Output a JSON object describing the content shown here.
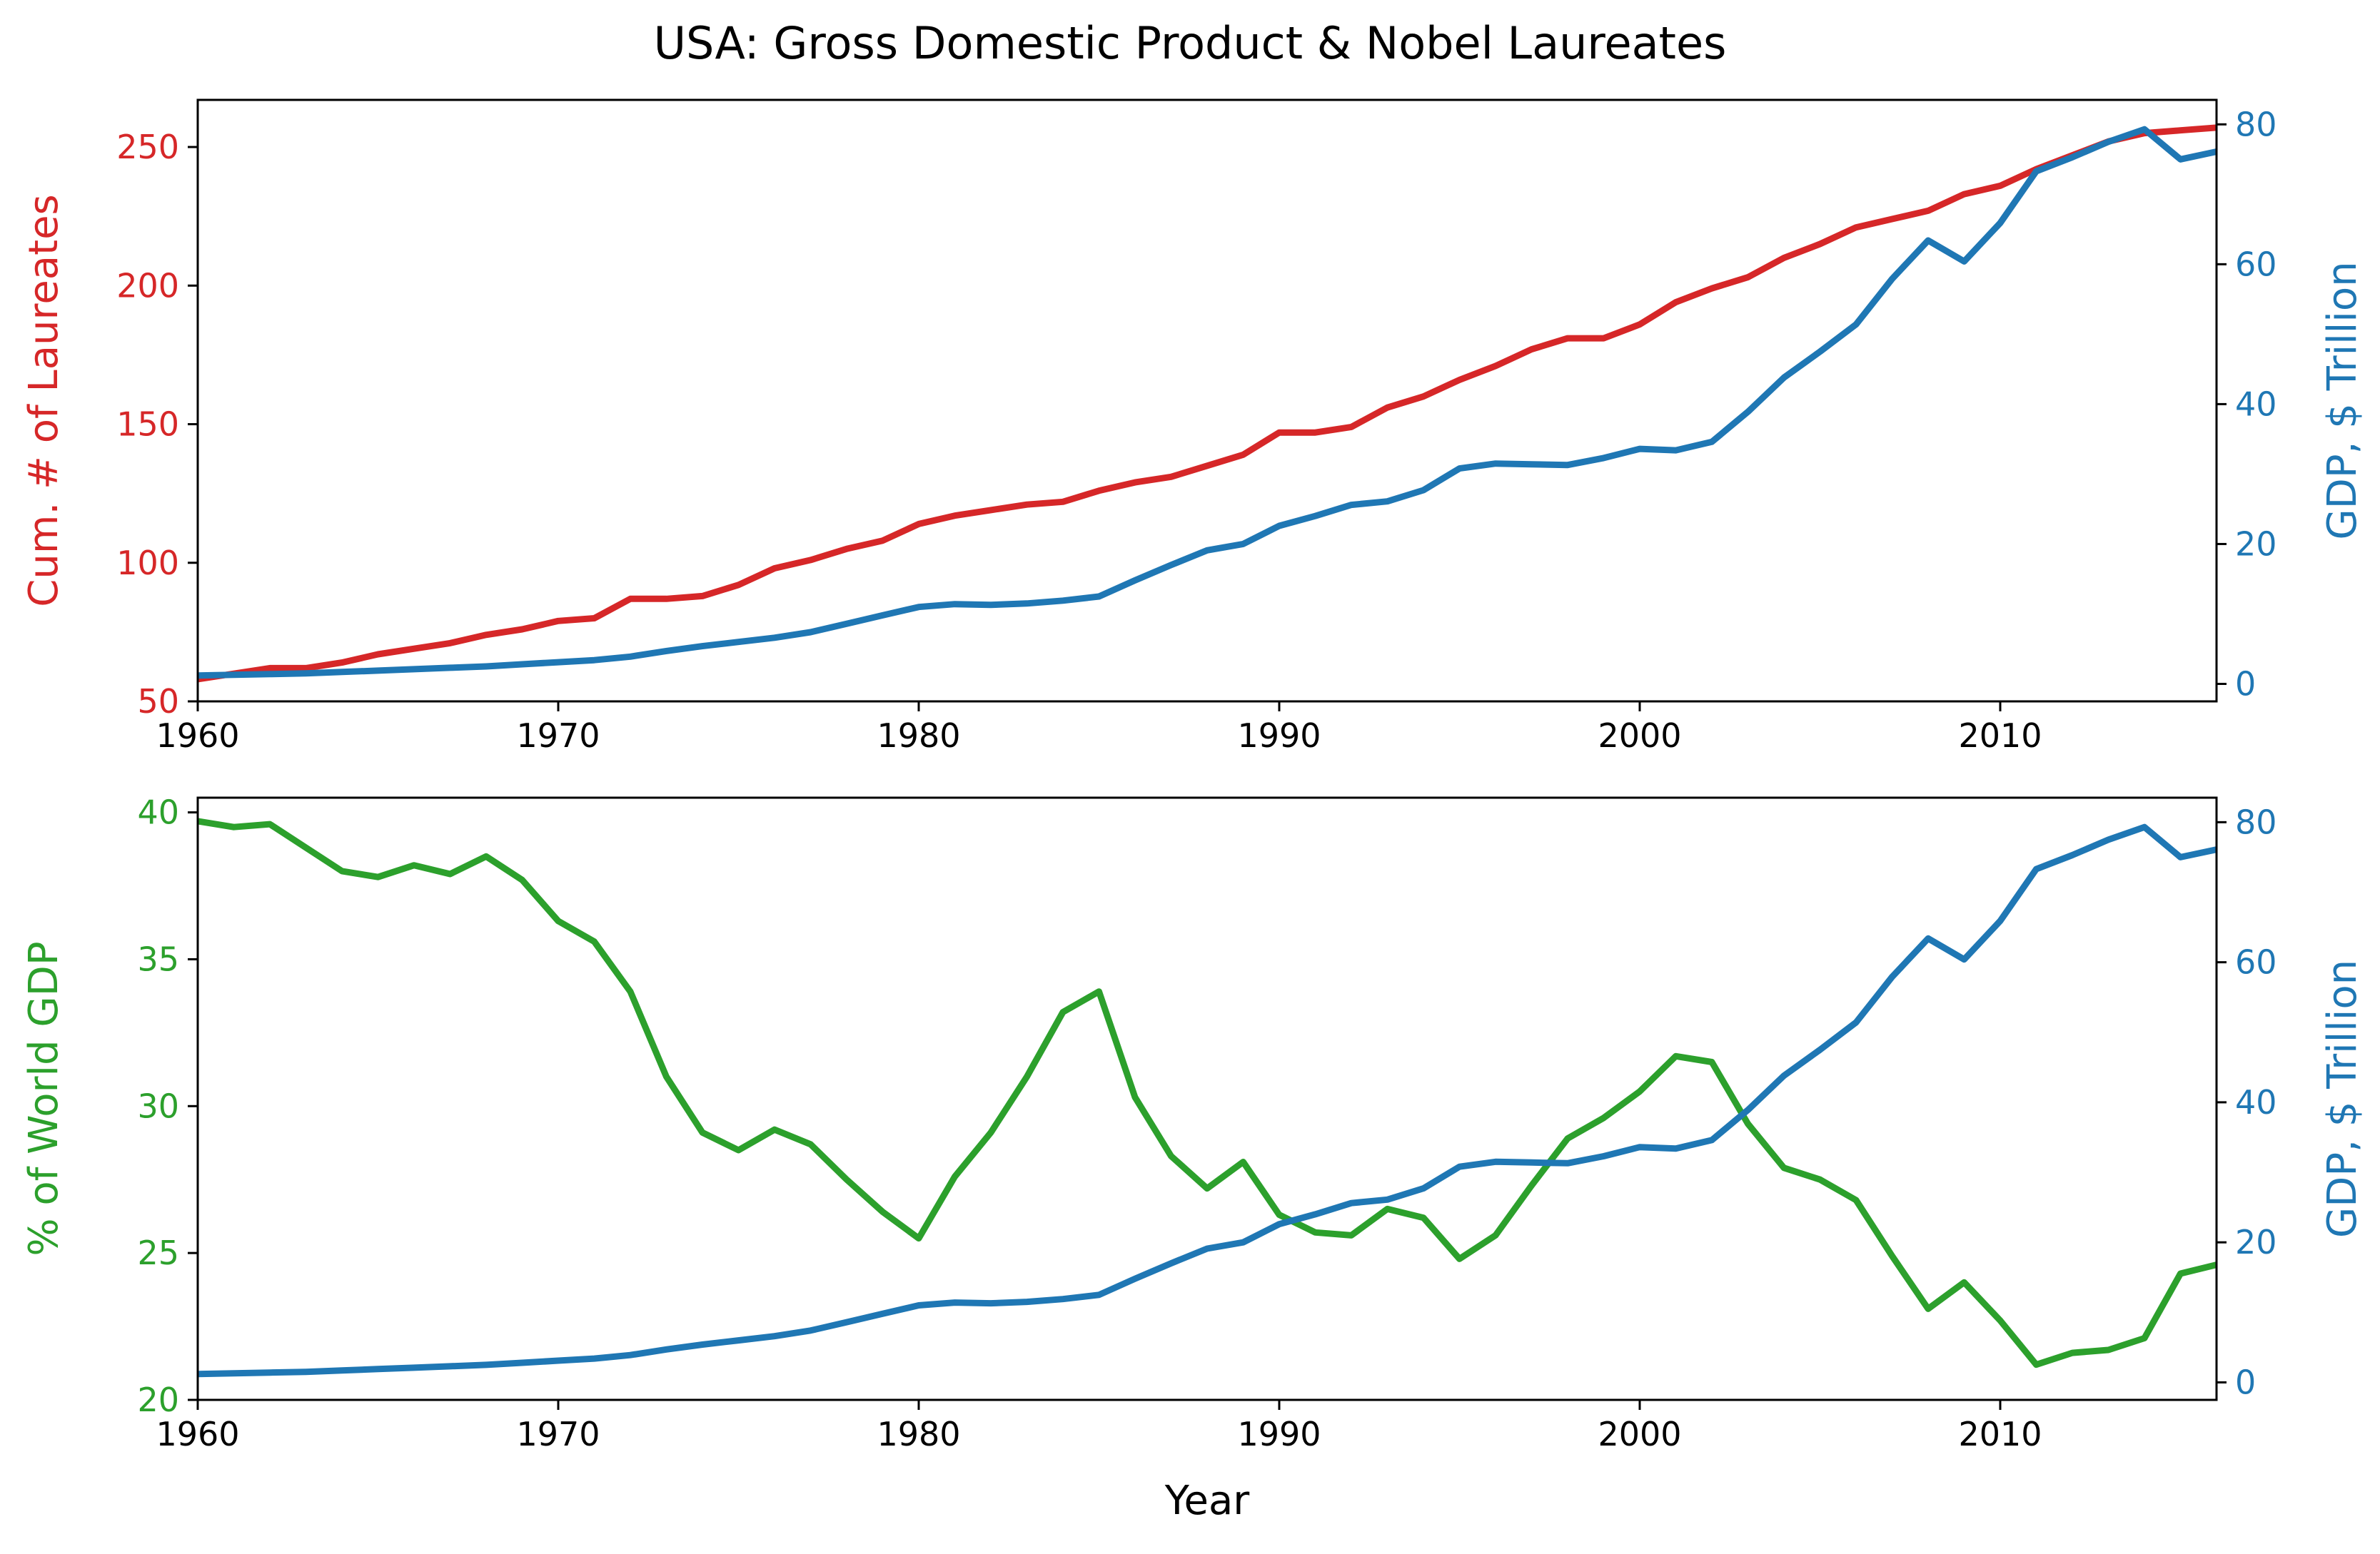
{
  "title": "USA: Gross Domestic Product & Nobel Laureates",
  "colors": {
    "laureates": "#d62728",
    "gdp": "#1f77b4",
    "world_share": "#2ca02c",
    "axis": "#000000"
  },
  "chart_data": [
    {
      "type": "line",
      "xlabel": "",
      "xlim": [
        1960,
        2016
      ],
      "x_ticks": [
        1960,
        1970,
        1980,
        1990,
        2000,
        2010
      ],
      "left_axis": {
        "label": "Cum. # of Laureates",
        "ylim": [
          50,
          267
        ],
        "ticks": [
          50,
          100,
          150,
          200,
          250
        ]
      },
      "right_axis": {
        "label": "GDP, $ Trillion",
        "ylim": [
          -2.5,
          83.5
        ],
        "ticks": [
          0,
          20,
          40,
          60,
          80
        ]
      },
      "x": [
        1960,
        1961,
        1962,
        1963,
        1964,
        1965,
        1966,
        1967,
        1968,
        1969,
        1970,
        1971,
        1972,
        1973,
        1974,
        1975,
        1976,
        1977,
        1978,
        1979,
        1980,
        1981,
        1982,
        1983,
        1984,
        1985,
        1986,
        1987,
        1988,
        1989,
        1990,
        1991,
        1992,
        1993,
        1994,
        1995,
        1996,
        1997,
        1998,
        1999,
        2000,
        2001,
        2002,
        2003,
        2004,
        2005,
        2006,
        2007,
        2008,
        2009,
        2010,
        2011,
        2012,
        2013,
        2014,
        2015,
        2016
      ],
      "series": [
        {
          "axis": "left",
          "color_key": "laureates",
          "values": [
            58,
            60,
            62,
            62,
            64,
            67,
            69,
            71,
            74,
            76,
            79,
            80,
            87,
            87,
            88,
            92,
            98,
            101,
            105,
            108,
            114,
            117,
            119,
            121,
            122,
            126,
            129,
            131,
            135,
            139,
            147,
            147,
            149,
            156,
            160,
            166,
            171,
            177,
            181,
            181,
            186,
            194,
            199,
            203,
            210,
            215,
            221,
            224,
            227,
            233,
            236,
            242,
            247,
            252,
            255,
            256,
            257
          ]
        },
        {
          "axis": "right",
          "color_key": "gdp",
          "values": [
            1.2,
            1.3,
            1.4,
            1.5,
            1.7,
            1.9,
            2.1,
            2.3,
            2.5,
            2.8,
            3.1,
            3.4,
            3.9,
            4.7,
            5.4,
            6.0,
            6.6,
            7.4,
            8.6,
            9.8,
            11.0,
            11.4,
            11.3,
            11.5,
            11.9,
            12.5,
            14.8,
            17.0,
            19.1,
            20.0,
            22.6,
            24.0,
            25.6,
            26.1,
            27.7,
            30.8,
            31.5,
            31.4,
            31.3,
            32.3,
            33.6,
            33.4,
            34.6,
            38.9,
            43.8,
            47.5,
            51.4,
            57.9,
            63.4,
            60.4,
            65.9,
            73.3,
            75.3,
            77.5,
            79.3,
            75.0,
            76.1
          ]
        }
      ]
    },
    {
      "type": "line",
      "xlabel": "Year",
      "xlim": [
        1960,
        2016
      ],
      "x_ticks": [
        1960,
        1970,
        1980,
        1990,
        2000,
        2010
      ],
      "left_axis": {
        "label": "% of World GDP",
        "ylim": [
          20,
          40.5
        ],
        "ticks": [
          20,
          25,
          30,
          35,
          40
        ]
      },
      "right_axis": {
        "label": "GDP, $ Trillion",
        "ylim": [
          -2.5,
          83.5
        ],
        "ticks": [
          0,
          20,
          40,
          60,
          80
        ]
      },
      "x": [
        1960,
        1961,
        1962,
        1963,
        1964,
        1965,
        1966,
        1967,
        1968,
        1969,
        1970,
        1971,
        1972,
        1973,
        1974,
        1975,
        1976,
        1977,
        1978,
        1979,
        1980,
        1981,
        1982,
        1983,
        1984,
        1985,
        1986,
        1987,
        1988,
        1989,
        1990,
        1991,
        1992,
        1993,
        1994,
        1995,
        1996,
        1997,
        1998,
        1999,
        2000,
        2001,
        2002,
        2003,
        2004,
        2005,
        2006,
        2007,
        2008,
        2009,
        2010,
        2011,
        2012,
        2013,
        2014,
        2015,
        2016
      ],
      "series": [
        {
          "axis": "left",
          "color_key": "world_share",
          "values": [
            39.7,
            39.5,
            39.6,
            38.8,
            38.0,
            37.8,
            38.2,
            37.9,
            38.5,
            37.7,
            36.3,
            35.6,
            33.9,
            31.0,
            29.1,
            28.5,
            29.2,
            28.7,
            27.5,
            26.4,
            25.5,
            27.6,
            29.1,
            31.0,
            33.2,
            33.9,
            30.3,
            28.3,
            27.2,
            28.1,
            26.3,
            25.7,
            25.6,
            26.5,
            26.2,
            24.8,
            25.6,
            27.3,
            28.9,
            29.6,
            30.5,
            31.7,
            31.5,
            29.4,
            27.9,
            27.5,
            26.8,
            24.9,
            23.1,
            24.0,
            22.7,
            21.2,
            21.6,
            21.7,
            22.1,
            24.3,
            24.6
          ]
        },
        {
          "axis": "right",
          "color_key": "gdp",
          "values": [
            1.2,
            1.3,
            1.4,
            1.5,
            1.7,
            1.9,
            2.1,
            2.3,
            2.5,
            2.8,
            3.1,
            3.4,
            3.9,
            4.7,
            5.4,
            6.0,
            6.6,
            7.4,
            8.6,
            9.8,
            11.0,
            11.4,
            11.3,
            11.5,
            11.9,
            12.5,
            14.8,
            17.0,
            19.1,
            20.0,
            22.6,
            24.0,
            25.6,
            26.1,
            27.7,
            30.8,
            31.5,
            31.4,
            31.3,
            32.3,
            33.6,
            33.4,
            34.6,
            38.9,
            43.8,
            47.5,
            51.4,
            57.9,
            63.4,
            60.4,
            65.9,
            73.3,
            75.3,
            77.5,
            79.3,
            75.0,
            76.1
          ]
        }
      ]
    }
  ]
}
